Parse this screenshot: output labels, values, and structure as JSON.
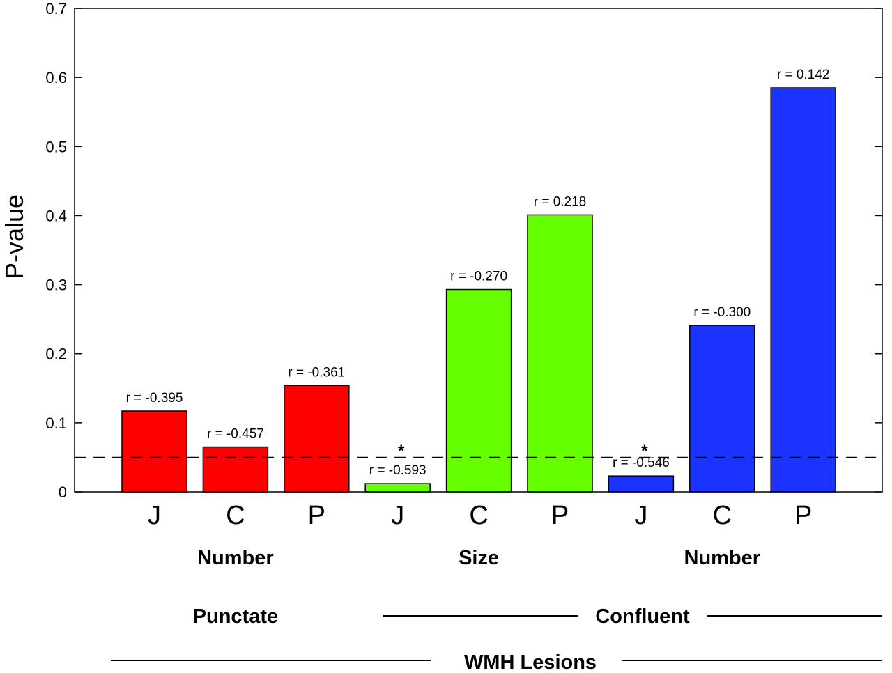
{
  "chart_data": {
    "type": "bar",
    "ylabel": "P-value",
    "ylim": [
      0,
      0.7
    ],
    "yticks": [
      "0",
      "0.1",
      "0.2",
      "0.3",
      "0.4",
      "0.5",
      "0.6",
      "0.7"
    ],
    "threshold": 0.05,
    "categories": [
      "J",
      "C",
      "P",
      "J",
      "C",
      "P",
      "J",
      "C",
      "P"
    ],
    "values": [
      0.117,
      0.065,
      0.154,
      0.012,
      0.293,
      0.401,
      0.023,
      0.241,
      0.585
    ],
    "r_labels": [
      "r = -0.395",
      "r = -0.457",
      "r = -0.361",
      "r = -0.593",
      "r = -0.270",
      "r = 0.218",
      "r = -0.546",
      "r = -0.300",
      "r = 0.142"
    ],
    "significant": [
      false,
      false,
      false,
      true,
      false,
      false,
      true,
      false,
      false
    ],
    "significance_marker": "*",
    "colors": [
      "#ff0000",
      "#ff0000",
      "#ff0000",
      "#66ff00",
      "#66ff00",
      "#66ff00",
      "#1a33ff",
      "#1a33ff",
      "#1a33ff"
    ],
    "subgroups": [
      "Number",
      "Size",
      "Number"
    ],
    "groups": [
      "Punctate",
      "Confluent"
    ],
    "supergroup": "WMH Lesions"
  }
}
